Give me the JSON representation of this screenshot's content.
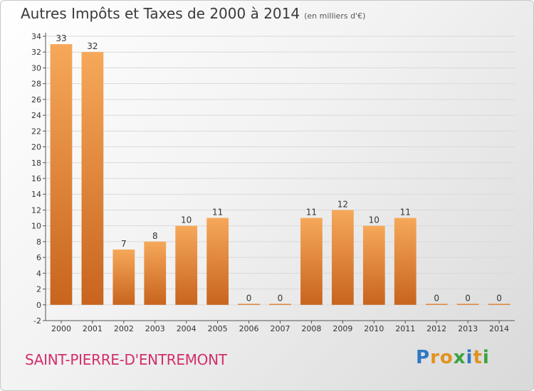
{
  "header": {
    "title": "Autres Impôts et Taxes de 2000 à 2014",
    "subtitle": "(en milliers d'€)"
  },
  "footer": {
    "commune": "SAINT-PIERRE-D'ENTREMONT",
    "logo_letters": [
      "P",
      "r",
      "o",
      "x",
      "i",
      "t",
      "i"
    ],
    "logo_colors": [
      "#2f78c4",
      "#e2921e",
      "#e2921e",
      "#3aa43a",
      "#2f78c4",
      "#e2921e",
      "#3aa43a"
    ]
  },
  "colors": {
    "bar_top": "#f6a85a",
    "bar_bottom": "#c8641e",
    "grid": "#d9d9d9",
    "axis": "#555555"
  },
  "chart_data": {
    "type": "bar",
    "title": "Autres Impôts et Taxes de 2000 à 2014",
    "subtitle": "(en milliers d'€)",
    "xlabel": "",
    "ylabel": "",
    "categories": [
      "2000",
      "2001",
      "2002",
      "2003",
      "2004",
      "2005",
      "2006",
      "2007",
      "2008",
      "2009",
      "2010",
      "2011",
      "2012",
      "2013",
      "2014"
    ],
    "values": [
      33,
      32,
      7,
      8,
      10,
      11,
      0,
      0,
      11,
      12,
      10,
      11,
      0,
      0,
      0
    ],
    "ylim": [
      -2,
      34
    ],
    "yticks": [
      -2,
      0,
      2,
      4,
      6,
      8,
      10,
      12,
      14,
      16,
      18,
      20,
      22,
      24,
      26,
      28,
      30,
      32,
      34
    ],
    "grid": true
  }
}
